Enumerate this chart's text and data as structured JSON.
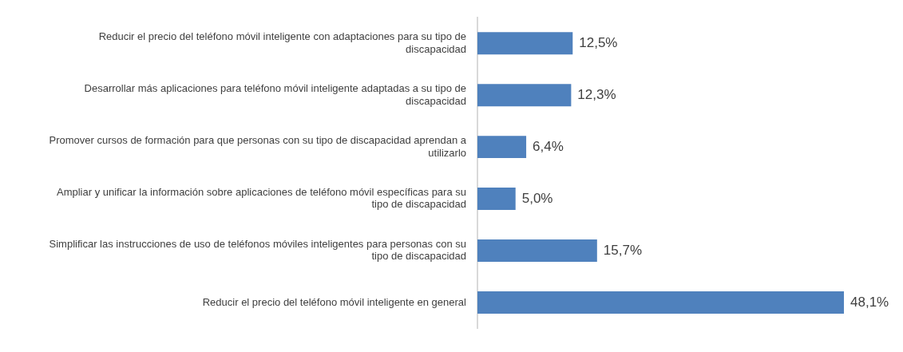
{
  "chart_data": {
    "type": "bar",
    "orientation": "horizontal",
    "data_labels": true,
    "legend": false,
    "tick_labels": "y",
    "categories": [
      "Reducir el precio del teléfono móvil inteligente con adaptaciones para su tipo de discapacidad",
      "Desarrollar más aplicaciones para teléfono móvil inteligente adaptadas a su tipo de discapacidad",
      "Promover cursos de formación para que personas con su tipo de discapacidad aprendan a utilizarlo",
      "Ampliar y unificar la información sobre aplicaciones de teléfono móvil específicas para su tipo de discapacidad",
      "Simplificar las instrucciones de uso de teléfonos móviles inteligentes para personas con su tipo de discapacidad",
      "Reducir el precio del teléfono móvil inteligente en general"
    ],
    "values": [
      12.5,
      12.3,
      6.4,
      5.0,
      15.7,
      48.1
    ],
    "value_labels": [
      "12,5%",
      "12,3%",
      "6,4%",
      "5,0%",
      "15,7%",
      "48,1%"
    ],
    "color": "#4f81bd"
  }
}
